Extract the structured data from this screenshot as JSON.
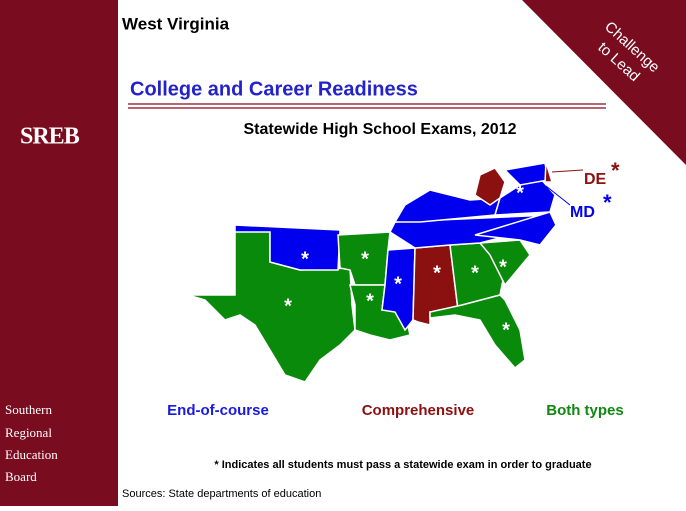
{
  "header": {
    "title": "West Virginia",
    "heading": "College and Career Readiness",
    "subtitle": "Statewide High School Exams, 2012"
  },
  "banner": [
    "Challenge",
    "to Lead"
  ],
  "sidebar": {
    "logo": "SREB",
    "org": [
      "Southern",
      "Regional",
      "Education",
      "Board"
    ]
  },
  "map": {
    "marker": "*",
    "callouts": [
      "DE",
      "MD"
    ]
  },
  "legend": [
    "End-of-course",
    "Comprehensive",
    "Both types"
  ],
  "footnote": "* Indicates all students must pass a statewide exam in order to graduate",
  "source": "Sources: State departments of education"
}
